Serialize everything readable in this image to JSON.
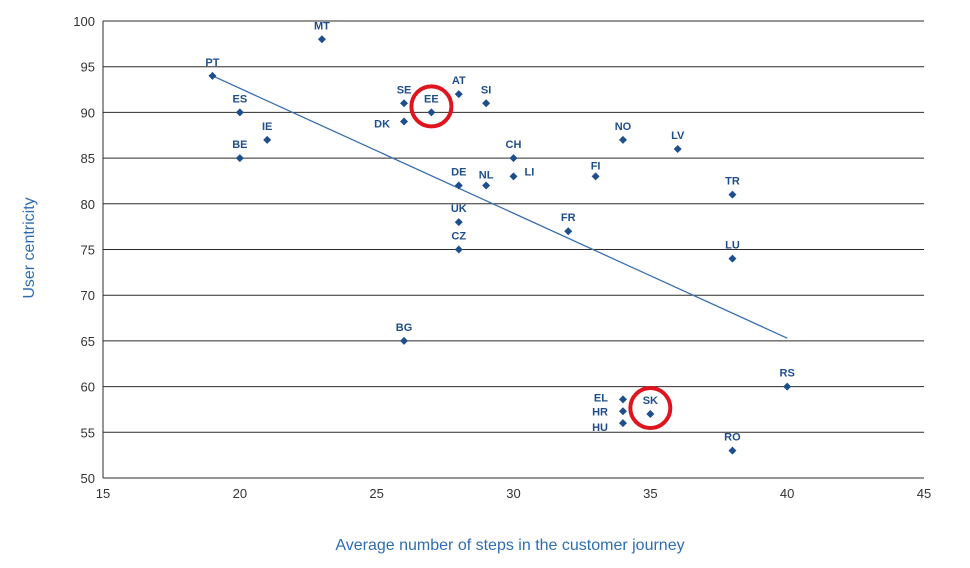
{
  "chart_data": {
    "type": "scatter",
    "title": "",
    "xlabel": "Average number of steps in the customer journey",
    "ylabel": "User centricity",
    "xlim": [
      15,
      45
    ],
    "ylim": [
      50,
      100
    ],
    "x_ticks": [
      "15",
      "20",
      "25",
      "30",
      "35",
      "40",
      "45"
    ],
    "y_ticks": [
      "50",
      "55",
      "60",
      "65",
      "70",
      "75",
      "80",
      "85",
      "90",
      "95",
      "100"
    ],
    "grid": "horizontal",
    "series": [
      {
        "points": [
          {
            "label": "MT",
            "x": 23,
            "y": 98
          },
          {
            "label": "PT",
            "x": 19,
            "y": 94
          },
          {
            "label": "ES",
            "x": 20,
            "y": 90
          },
          {
            "label": "IE",
            "x": 21,
            "y": 87
          },
          {
            "label": "BE",
            "x": 20,
            "y": 85
          },
          {
            "label": "SE",
            "x": 26,
            "y": 91
          },
          {
            "label": "DK",
            "x": 26,
            "y": 89
          },
          {
            "label": "EE",
            "x": 27,
            "y": 90
          },
          {
            "label": "AT",
            "x": 28,
            "y": 92
          },
          {
            "label": "SI",
            "x": 29,
            "y": 91
          },
          {
            "label": "CH",
            "x": 30,
            "y": 85
          },
          {
            "label": "LI",
            "x": 30,
            "y": 83
          },
          {
            "label": "NL",
            "x": 29,
            "y": 82
          },
          {
            "label": "DE",
            "x": 28,
            "y": 82
          },
          {
            "label": "UK",
            "x": 28,
            "y": 78
          },
          {
            "label": "CZ",
            "x": 28,
            "y": 75
          },
          {
            "label": "NO",
            "x": 34,
            "y": 87
          },
          {
            "label": "LV",
            "x": 36,
            "y": 86
          },
          {
            "label": "FI",
            "x": 33,
            "y": 83
          },
          {
            "label": "FR",
            "x": 32,
            "y": 77
          },
          {
            "label": "TR",
            "x": 38,
            "y": 81
          },
          {
            "label": "LU",
            "x": 38,
            "y": 74
          },
          {
            "label": "BG",
            "x": 26,
            "y": 65
          },
          {
            "label": "RS",
            "x": 40,
            "y": 60
          },
          {
            "label": "EL",
            "x": 34,
            "y": 58.6
          },
          {
            "label": "HR",
            "x": 34,
            "y": 57.3
          },
          {
            "label": "SK",
            "x": 35,
            "y": 57
          },
          {
            "label": "HU",
            "x": 34,
            "y": 56
          },
          {
            "label": "RO",
            "x": 38,
            "y": 53
          }
        ]
      }
    ],
    "trendline": {
      "x": [
        19,
        40
      ],
      "y": [
        94,
        65.3
      ]
    },
    "highlighted": [
      "EE",
      "SK"
    ],
    "colors": {
      "marker": "#1f4e8c",
      "label": "#1f4e8c",
      "trend": "#3a6fb0",
      "axis_title": "#2e6db4",
      "highlight": "#e0141e",
      "grid": "#2b2b2b"
    }
  }
}
